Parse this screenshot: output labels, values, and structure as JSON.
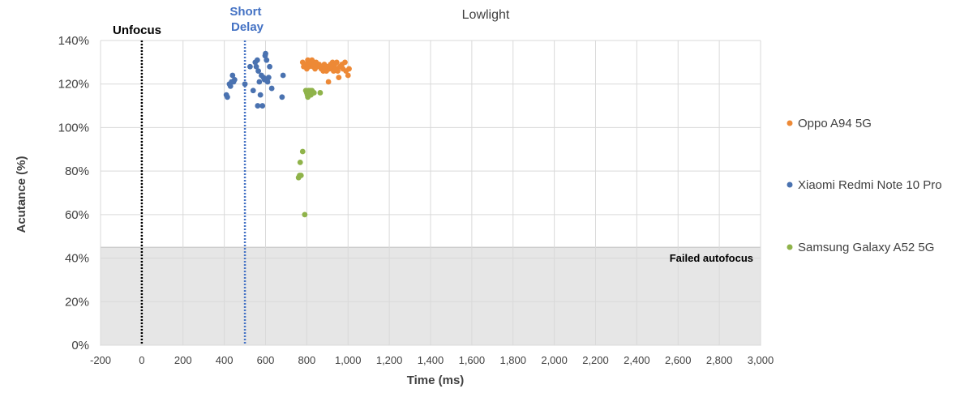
{
  "chart_data": {
    "type": "scatter",
    "title": "Lowlight",
    "xlabel": "Time (ms)",
    "ylabel": "Acutance (%)",
    "xlim": [
      -200,
      3000
    ],
    "ylim": [
      0,
      140
    ],
    "x_ticks": [
      "-200",
      "0",
      "200",
      "400",
      "600",
      "800",
      "1,000",
      "1,200",
      "1,400",
      "1,600",
      "1,800",
      "2,000",
      "2,200",
      "2,400",
      "2,600",
      "2,800",
      "3,000"
    ],
    "y_ticks": [
      "0%",
      "20%",
      "40%",
      "60%",
      "80%",
      "100%",
      "120%",
      "140%"
    ],
    "grid": true,
    "legend_position": "right",
    "failed_region": {
      "label": "Failed autofocus",
      "y_max": 45,
      "color": "#e6e6e6"
    },
    "reference_lines": [
      {
        "label": "Unfocus",
        "x": 0,
        "color": "#000000"
      },
      {
        "label_lines": [
          "Short",
          "Delay"
        ],
        "x": 500,
        "color": "#4472c4"
      }
    ],
    "series": [
      {
        "name": "Oppo A94 5G",
        "color": "#ed8936",
        "points": [
          [
            780,
            130
          ],
          [
            785,
            128
          ],
          [
            795,
            129
          ],
          [
            800,
            127
          ],
          [
            805,
            131
          ],
          [
            810,
            128
          ],
          [
            815,
            129
          ],
          [
            820,
            130
          ],
          [
            825,
            131
          ],
          [
            830,
            128
          ],
          [
            835,
            129
          ],
          [
            840,
            127
          ],
          [
            845,
            130
          ],
          [
            850,
            128
          ],
          [
            860,
            129
          ],
          [
            870,
            127
          ],
          [
            875,
            128
          ],
          [
            880,
            126
          ],
          [
            885,
            129
          ],
          [
            890,
            127
          ],
          [
            895,
            126
          ],
          [
            900,
            128
          ],
          [
            905,
            121
          ],
          [
            910,
            127
          ],
          [
            915,
            129
          ],
          [
            920,
            128
          ],
          [
            925,
            130
          ],
          [
            930,
            126
          ],
          [
            935,
            129
          ],
          [
            940,
            127
          ],
          [
            945,
            130
          ],
          [
            950,
            126
          ],
          [
            955,
            123
          ],
          [
            960,
            128
          ],
          [
            970,
            129
          ],
          [
            975,
            127
          ],
          [
            985,
            130
          ],
          [
            990,
            126
          ],
          [
            1000,
            124
          ],
          [
            1005,
            127
          ]
        ]
      },
      {
        "name": "Xiaomi Redmi Note 10 Pro",
        "color": "#4a72b0",
        "points": [
          [
            410,
            115
          ],
          [
            415,
            114
          ],
          [
            425,
            120
          ],
          [
            430,
            119
          ],
          [
            435,
            121
          ],
          [
            440,
            124
          ],
          [
            445,
            121
          ],
          [
            450,
            122
          ],
          [
            500,
            120
          ],
          [
            525,
            128
          ],
          [
            540,
            117
          ],
          [
            550,
            130
          ],
          [
            555,
            128
          ],
          [
            560,
            131
          ],
          [
            562,
            110
          ],
          [
            565,
            126
          ],
          [
            570,
            121
          ],
          [
            575,
            115
          ],
          [
            580,
            124
          ],
          [
            585,
            110
          ],
          [
            590,
            123
          ],
          [
            595,
            122
          ],
          [
            598,
            133
          ],
          [
            600,
            134
          ],
          [
            605,
            131
          ],
          [
            610,
            121
          ],
          [
            615,
            123
          ],
          [
            620,
            128
          ],
          [
            630,
            118
          ],
          [
            680,
            114
          ],
          [
            685,
            124
          ]
        ]
      },
      {
        "name": "Samsung Galaxy A52 5G",
        "color": "#8fb34a",
        "points": [
          [
            760,
            77
          ],
          [
            765,
            78
          ],
          [
            768,
            84
          ],
          [
            772,
            78
          ],
          [
            780,
            89
          ],
          [
            790,
            60
          ],
          [
            795,
            117
          ],
          [
            800,
            116
          ],
          [
            803,
            115
          ],
          [
            805,
            114
          ],
          [
            808,
            117
          ],
          [
            810,
            116
          ],
          [
            812,
            115
          ],
          [
            815,
            117
          ],
          [
            818,
            116
          ],
          [
            820,
            115
          ],
          [
            825,
            117
          ],
          [
            830,
            116
          ],
          [
            835,
            116
          ],
          [
            865,
            116
          ]
        ]
      }
    ]
  }
}
